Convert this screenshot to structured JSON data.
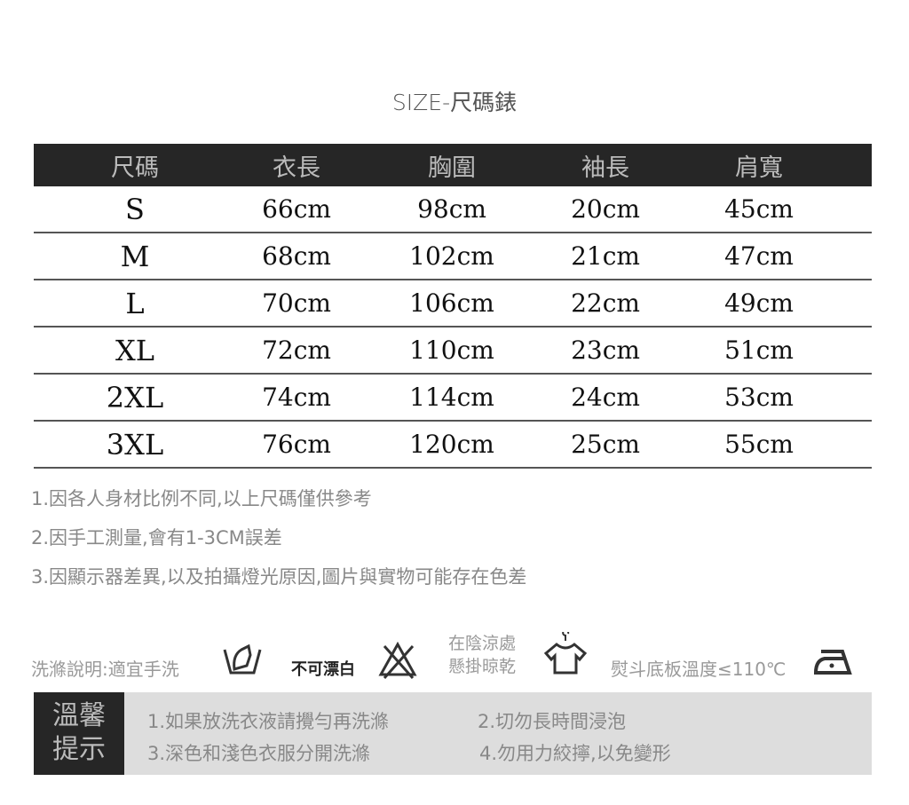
{
  "title": "SIZE-尺碼錶",
  "table": {
    "headers": [
      "尺碼",
      "衣長",
      "胸圍",
      "袖長",
      "肩寬"
    ],
    "rows": [
      [
        "S",
        "66cm",
        "98cm",
        "20cm",
        "45cm"
      ],
      [
        "M",
        "68cm",
        "102cm",
        "21cm",
        "47cm"
      ],
      [
        "L",
        "70cm",
        "106cm",
        "22cm",
        "49cm"
      ],
      [
        "XL",
        "72cm",
        "110cm",
        "23cm",
        "51cm"
      ],
      [
        "2XL",
        "74cm",
        "114cm",
        "24cm",
        "53cm"
      ],
      [
        "3XL",
        "76cm",
        "120cm",
        "25cm",
        "55cm"
      ]
    ]
  },
  "notes": [
    "1.因各人身材比例不同,以上尺碼僅供參考",
    "2.因手工測量,會有1-3CM誤差",
    "3.因顯示器差異,以及拍攝燈光原因,圖片與實物可能存在色差"
  ],
  "care": {
    "wash": "洗滌說明:適宜手洗",
    "bleach": "不可漂白",
    "dry1": "在陰涼處",
    "dry2": "懸掛晾乾",
    "iron": "熨斗底板溫度≤110℃",
    "icons": [
      "hand-wash-icon",
      "no-bleach-icon",
      "hang-dry-icon",
      "iron-low-icon"
    ]
  },
  "tips": {
    "label1": "溫馨",
    "label2": "提示",
    "items": [
      "1.如果放洗衣液請攪勻再洗滌",
      "2.切勿長時間浸泡",
      "3.深色和淺色衣服分開洗滌",
      "4.勿用力絞擰,以免變形"
    ]
  }
}
